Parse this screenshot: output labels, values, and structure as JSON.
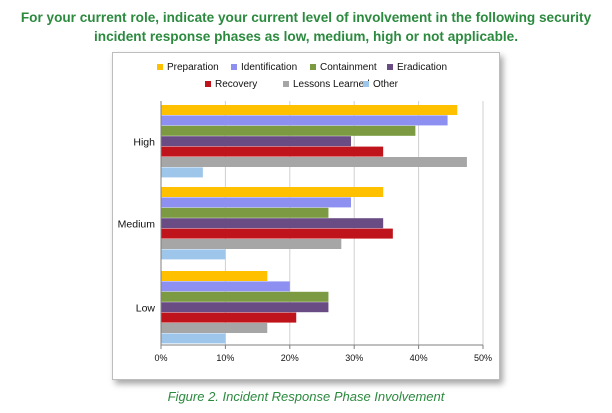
{
  "question": {
    "line1": "For your current role, indicate your current level of involvement in the following security",
    "line2": "incident response phases as low, medium, high or not applicable."
  },
  "caption": "Figure 2. Incident Response Phase Involvement",
  "chart_data": {
    "type": "bar",
    "orientation": "horizontal",
    "categories": [
      "High",
      "Medium",
      "Low"
    ],
    "series": [
      {
        "name": "Preparation",
        "color": "#ffc000",
        "values": [
          46,
          34.5,
          16.5
        ]
      },
      {
        "name": "Identification",
        "color": "#8d90f0",
        "values": [
          44.5,
          29.5,
          20
        ]
      },
      {
        "name": "Containment",
        "color": "#7b9a41",
        "values": [
          39.5,
          26,
          26
        ]
      },
      {
        "name": "Eradication",
        "color": "#6a4c84",
        "values": [
          29.5,
          34.5,
          26
        ]
      },
      {
        "name": "Recovery",
        "color": "#c0141c",
        "values": [
          34.5,
          36,
          21
        ]
      },
      {
        "name": "Lessons Learned",
        "color": "#a6a6a6",
        "values": [
          47.5,
          28,
          16.5
        ]
      },
      {
        "name": "Other",
        "color": "#9ec6ea",
        "values": [
          6.5,
          10,
          10
        ]
      }
    ],
    "xlim": [
      0,
      50
    ],
    "xticks": [
      0,
      10,
      20,
      30,
      40,
      50
    ],
    "tick_format": "%",
    "legend_position": "top",
    "grid": "vertical"
  }
}
